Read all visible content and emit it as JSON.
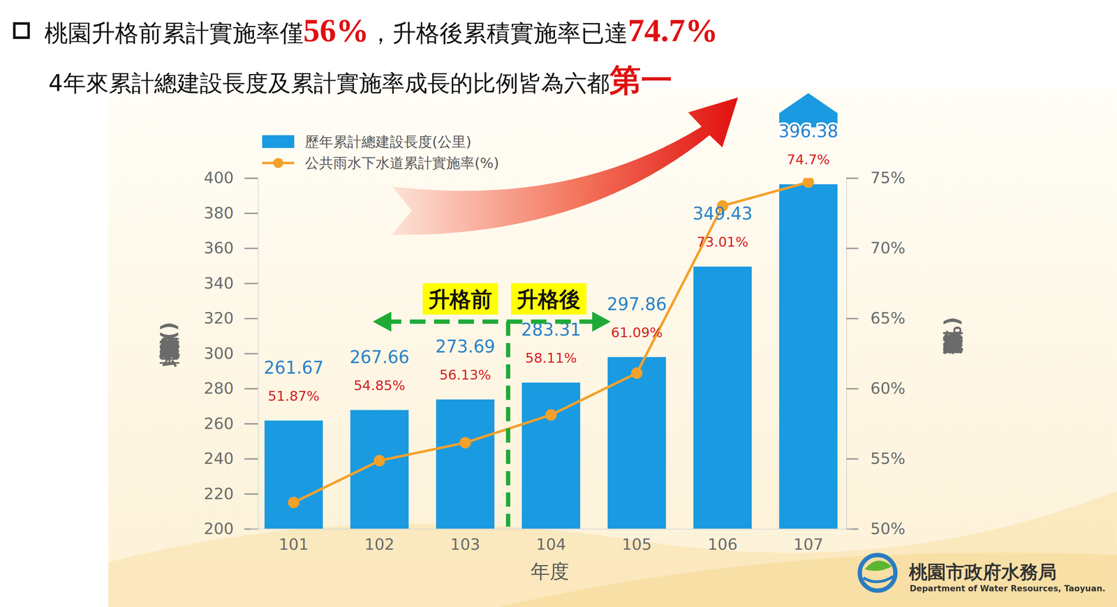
{
  "chart_data": {
    "type": "bar",
    "title": [
      "桃園升格前累計實施率僅",
      "56%",
      "，升格後累積實施率已達",
      "74.7%"
    ],
    "subtitle": [
      "4年來累計總建設長度及累計實施率成長的比例皆為六都",
      "第一"
    ],
    "x_label": "年度",
    "y_label": "歷年累計總建設長度(公里)",
    "y2_label": "公共雨水下水道累計實施率(%)",
    "categories": [
      "101",
      "102",
      "103",
      "104",
      "105",
      "106",
      "107"
    ],
    "series": [
      {
        "name": "歷年累計總建設長度(公里)",
        "type": "bar",
        "color": "#1a9ae0",
        "values": [
          261.67,
          267.66,
          273.69,
          283.31,
          297.86,
          349.43,
          396.38
        ]
      },
      {
        "name": "公共雨水下水道累計實施率(%)",
        "type": "line",
        "axis": "y2",
        "color": "#f4a12a",
        "marker": "circle",
        "values": [
          51.87,
          54.85,
          56.13,
          58.11,
          61.09,
          73.01,
          74.7
        ],
        "value_labels": [
          "51.87%",
          "54.85%",
          "56.13%",
          "58.11%",
          "61.09%",
          "73.01%",
          "74.7%"
        ]
      }
    ],
    "ylim": [
      200,
      400
    ],
    "yticks": [
      200,
      220,
      240,
      260,
      280,
      300,
      320,
      340,
      360,
      380,
      400
    ],
    "y2lim": [
      50,
      75
    ],
    "y2ticks": [
      {
        "value": 50,
        "label": "50%"
      },
      {
        "value": 55,
        "label": "55%"
      },
      {
        "value": 60,
        "label": "60%"
      },
      {
        "value": 65,
        "label": "65%"
      },
      {
        "value": 70,
        "label": "70%"
      },
      {
        "value": 75,
        "label": "75%"
      }
    ],
    "data_labels": true,
    "grid": false,
    "legend": "top-left",
    "annotations": [
      "升格前",
      "升格後"
    ]
  },
  "logo": {
    "name": "桃園市政府水務局",
    "subtitle": "Department of Water Resources, Taoyuan."
  }
}
